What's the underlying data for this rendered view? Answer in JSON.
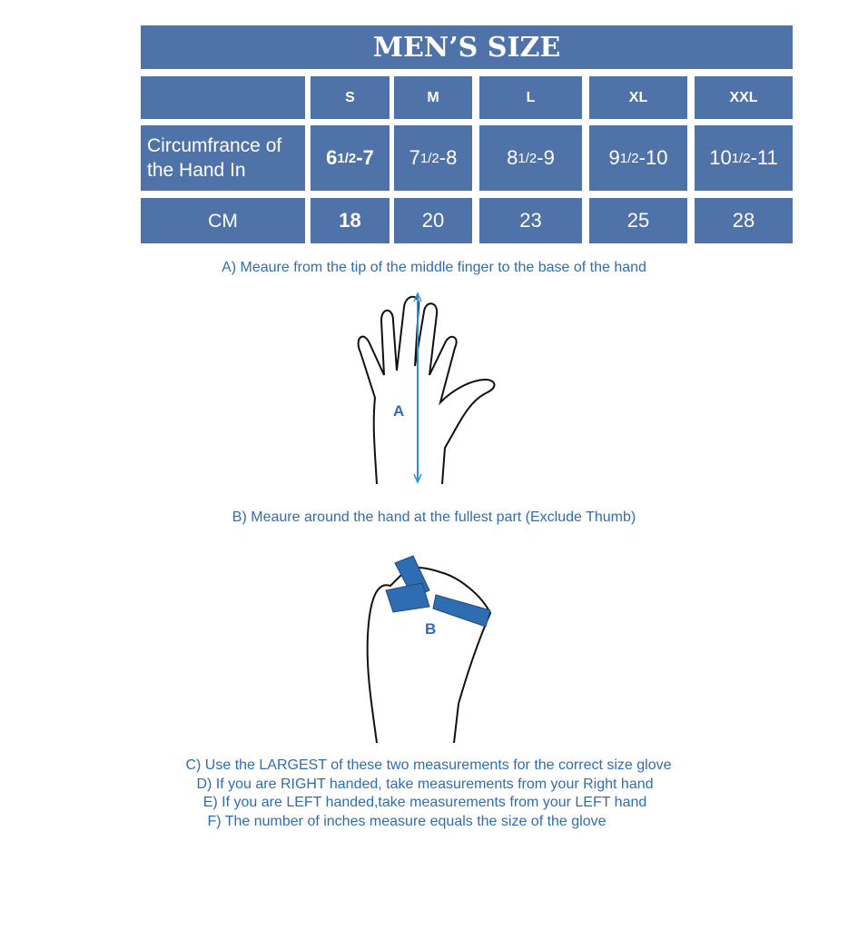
{
  "title": "MEN’S SIZE",
  "sizes": [
    "S",
    "M",
    "L",
    "XL",
    "XXL"
  ],
  "circumference": {
    "label": "Circumfrance of the Hand In",
    "values": [
      {
        "whole": "6 ",
        "frac": "1/2",
        "rest": "-7"
      },
      {
        "whole": "7",
        "frac": "1/2",
        "rest": "-8"
      },
      {
        "whole": "8",
        "frac": "1/2",
        "rest": " -9"
      },
      {
        "whole": "9",
        "frac": "1/2",
        "rest": " -10"
      },
      {
        "whole": "10",
        "frac": "1/2",
        "rest": "-11"
      }
    ]
  },
  "cm": {
    "label": "CM",
    "values": [
      "18",
      "20",
      "23",
      "25",
      "28"
    ]
  },
  "step_a": "A) Meaure from the tip of the middle finger to the base of the hand",
  "label_a": "A",
  "step_b": "B) Meaure around the hand at the fullest part (Exclude Thumb)",
  "label_b": "B",
  "instructions": [
    "C) Use the LARGEST of these two measurements for the correct size glove",
    "D) If you are RIGHT handed, take measurements from your Right hand",
    "E) If you are LEFT handed,take measurements from your LEFT hand",
    "F) The number of inches measure equals the size of the glove"
  ],
  "colors": {
    "table": "#4f72a8",
    "text": "#2f6db3"
  }
}
